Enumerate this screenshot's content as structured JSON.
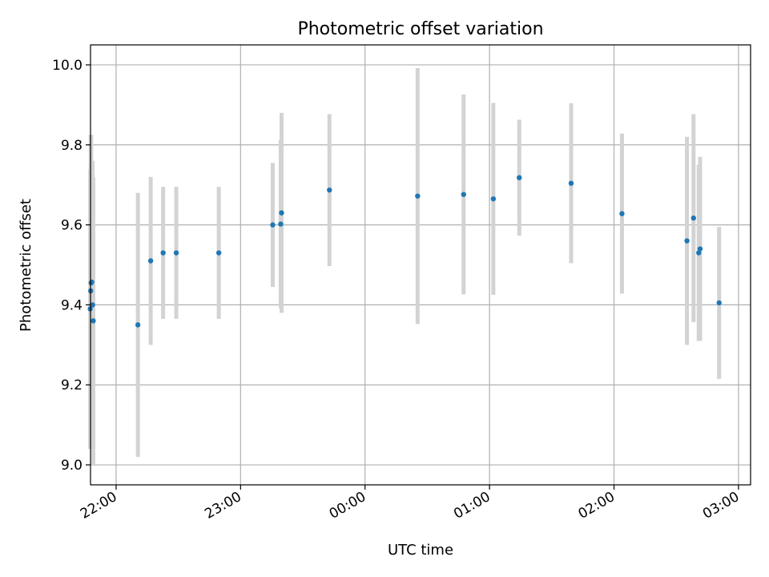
{
  "chart_data": {
    "type": "scatter",
    "title": "Photometric offset variation",
    "xlabel": "UTC time",
    "ylabel": "Photometric offset",
    "xlim": [
      "21:47:40",
      "03:05:50"
    ],
    "ylim": [
      8.95,
      10.05
    ],
    "x_ticks": [
      "22:00",
      "23:00",
      "00:00",
      "01:00",
      "02:00",
      "03:00"
    ],
    "y_ticks": [
      "9.0",
      "9.2",
      "9.4",
      "9.6",
      "9.8",
      "10.0"
    ],
    "grid": true,
    "colors": {
      "point": "#1f77b4",
      "errorbar": "#d3d3d3",
      "grid": "#b0b0b0"
    },
    "series": [
      {
        "values": [
          {
            "x": "21:47:30",
            "y": 9.39,
            "yerr": 0.35
          },
          {
            "x": "21:47:45",
            "y": 9.435,
            "yerr": 0.39
          },
          {
            "x": "21:48:00",
            "y": 9.455,
            "yerr": 0.37
          },
          {
            "x": "21:48:15",
            "y": 9.457,
            "yerr": 0.3
          },
          {
            "x": "21:48:40",
            "y": 9.4,
            "yerr": 0.36
          },
          {
            "x": "21:49:00",
            "y": 9.36,
            "yerr": 0.36
          },
          {
            "x": "22:10:30",
            "y": 9.35,
            "yerr": 0.33
          },
          {
            "x": "22:16:40",
            "y": 9.51,
            "yerr": 0.21
          },
          {
            "x": "22:22:40",
            "y": 9.53,
            "yerr": 0.165
          },
          {
            "x": "22:29:00",
            "y": 9.53,
            "yerr": 0.165
          },
          {
            "x": "22:49:30",
            "y": 9.53,
            "yerr": 0.165
          },
          {
            "x": "23:15:30",
            "y": 9.6,
            "yerr": 0.155
          },
          {
            "x": "23:19:20",
            "y": 9.602,
            "yerr": 0.21
          },
          {
            "x": "23:19:45",
            "y": 9.63,
            "yerr": 0.25
          },
          {
            "x": "23:42:50",
            "y": 9.687,
            "yerr": 0.19
          },
          {
            "x": "00:25:20",
            "y": 9.672,
            "yerr": 0.32
          },
          {
            "x": "00:47:30",
            "y": 9.676,
            "yerr": 0.25
          },
          {
            "x": "01:01:50",
            "y": 9.665,
            "yerr": 0.24
          },
          {
            "x": "01:14:20",
            "y": 9.718,
            "yerr": 0.145
          },
          {
            "x": "01:39:20",
            "y": 9.704,
            "yerr": 0.2
          },
          {
            "x": "02:03:50",
            "y": 9.628,
            "yerr": 0.2
          },
          {
            "x": "02:35:10",
            "y": 9.56,
            "yerr": 0.26
          },
          {
            "x": "02:38:20",
            "y": 9.617,
            "yerr": 0.26
          },
          {
            "x": "02:40:50",
            "y": 9.53,
            "yerr": 0.22
          },
          {
            "x": "02:41:30",
            "y": 9.54,
            "yerr": 0.23
          },
          {
            "x": "02:50:40",
            "y": 9.405,
            "yerr": 0.19
          }
        ]
      }
    ]
  }
}
